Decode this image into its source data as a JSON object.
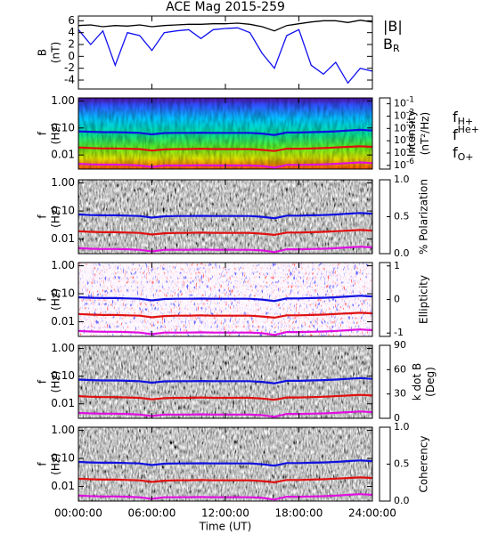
{
  "chart_data": [
    {
      "type": "line",
      "title": "ACE Mag 2015-259",
      "ylabel": [
        "B",
        "(nT)"
      ],
      "x": [
        0,
        1,
        2,
        3,
        4,
        5,
        6,
        7,
        8,
        9,
        10,
        11,
        12,
        13,
        14,
        15,
        16,
        17,
        18,
        19,
        20,
        21,
        22,
        23,
        24
      ],
      "ylim": [
        -5.5,
        6.8
      ],
      "yticks": [
        -4,
        -2,
        0,
        2,
        4,
        6
      ],
      "series": [
        {
          "name": "|B|",
          "color": "#000000",
          "values": [
            5.2,
            5.3,
            5.0,
            5.2,
            5.1,
            5.3,
            5.0,
            5.2,
            5.3,
            5.4,
            5.4,
            5.5,
            5.5,
            5.6,
            5.4,
            5.0,
            4.3,
            5.2,
            5.5,
            5.8,
            6.0,
            6.0,
            5.7,
            6.1,
            5.8
          ]
        },
        {
          "name": "B",
          "sub": "R",
          "color": "#1010f0",
          "values": [
            4.5,
            2.0,
            4.3,
            -1.5,
            4.0,
            3.5,
            1.0,
            4.0,
            4.3,
            4.5,
            3.0,
            4.5,
            4.7,
            4.8,
            4.0,
            0.5,
            -2.0,
            3.5,
            4.5,
            -1.5,
            -3.0,
            -1.0,
            -4.5,
            -2.0,
            -2.5
          ]
        }
      ]
    },
    {
      "type": "spectrogram",
      "ylabel": [
        "f",
        "(Hz)"
      ],
      "log_y": true,
      "texture": "intensity",
      "x": [
        0,
        1,
        2,
        3,
        4,
        5,
        6,
        7,
        8,
        9,
        10,
        11,
        12,
        13,
        14,
        15,
        16,
        17,
        18,
        19,
        20,
        21,
        22,
        23,
        24
      ],
      "ylim": [
        0.003,
        1.3
      ],
      "yticks": [
        0.01,
        {
          "value": 0.1,
          "label": "0.10"
        },
        {
          "value": 1,
          "label": "1.00"
        }
      ],
      "legend": true,
      "series": [
        {
          "name": "f",
          "sub": "H+",
          "color": "#1010e0",
          "values": [
            0.075,
            0.072,
            0.07,
            0.07,
            0.068,
            0.066,
            0.058,
            0.065,
            0.066,
            0.066,
            0.067,
            0.066,
            0.066,
            0.066,
            0.066,
            0.062,
            0.055,
            0.068,
            0.068,
            0.07,
            0.072,
            0.075,
            0.08,
            0.085,
            0.08
          ]
        },
        {
          "name": "f",
          "sup": "He+",
          "color": "#e01010",
          "values": [
            0.019,
            0.018,
            0.0175,
            0.0175,
            0.017,
            0.0165,
            0.0145,
            0.016,
            0.0165,
            0.0165,
            0.017,
            0.0165,
            0.0165,
            0.0165,
            0.0165,
            0.0155,
            0.014,
            0.017,
            0.017,
            0.0175,
            0.018,
            0.019,
            0.02,
            0.021,
            0.02
          ]
        },
        {
          "name": "f",
          "sub": "O+",
          "color": "#e010e0",
          "values": [
            0.0047,
            0.0045,
            0.0044,
            0.0044,
            0.0043,
            0.0041,
            0.0036,
            0.0041,
            0.0041,
            0.0041,
            0.0042,
            0.0041,
            0.0041,
            0.0041,
            0.0041,
            0.0039,
            0.0034,
            0.0043,
            0.0043,
            0.0044,
            0.0045,
            0.0047,
            0.005,
            0.0053,
            0.005
          ]
        }
      ],
      "colorbar": {
        "label": [
          "Intensity",
          "(nT²/Hz)"
        ],
        "log": true,
        "lim": [
          5e-07,
          0.3
        ],
        "colors": [
          "#300040",
          "#5010a0",
          "#2040ff",
          "#00c0ff",
          "#00e080",
          "#80f000",
          "#f0f000",
          "#ff8000",
          "#e00000"
        ],
        "ticks": [
          {
            "value": 1e-06,
            "label": "10",
            "exponent": "-6"
          },
          {
            "value": 1e-05,
            "label": "10",
            "exponent": "-5"
          },
          {
            "value": 0.0001,
            "label": "10",
            "exponent": "-4"
          },
          {
            "value": 0.001,
            "label": "10",
            "exponent": "-3"
          },
          {
            "value": 0.01,
            "label": "10",
            "exponent": "-2"
          },
          {
            "value": 0.1,
            "label": "10",
            "exponent": "-1"
          }
        ]
      }
    },
    {
      "type": "spectrogram",
      "ylabel": [
        "f",
        "(Hz)"
      ],
      "log_y": true,
      "texture": "gray",
      "x": [
        0,
        1,
        2,
        3,
        4,
        5,
        6,
        7,
        8,
        9,
        10,
        11,
        12,
        13,
        14,
        15,
        16,
        17,
        18,
        19,
        20,
        21,
        22,
        23,
        24
      ],
      "ylim": [
        0.003,
        1.3
      ],
      "yticks": [
        0.01,
        {
          "value": 0.1,
          "label": "0.10"
        },
        {
          "value": 1,
          "label": "1.00"
        }
      ],
      "series": [
        {
          "color": "#1010e0",
          "values": [
            0.075,
            0.072,
            0.07,
            0.07,
            0.068,
            0.066,
            0.058,
            0.065,
            0.066,
            0.066,
            0.067,
            0.066,
            0.066,
            0.066,
            0.066,
            0.062,
            0.055,
            0.068,
            0.068,
            0.07,
            0.072,
            0.075,
            0.08,
            0.085,
            0.08
          ]
        },
        {
          "color": "#e01010",
          "values": [
            0.019,
            0.018,
            0.0175,
            0.0175,
            0.017,
            0.0165,
            0.0145,
            0.016,
            0.0165,
            0.0165,
            0.017,
            0.0165,
            0.0165,
            0.0165,
            0.0165,
            0.0155,
            0.014,
            0.017,
            0.017,
            0.0175,
            0.018,
            0.019,
            0.02,
            0.021,
            0.02
          ]
        },
        {
          "color": "#e010e0",
          "values": [
            0.0047,
            0.0045,
            0.0044,
            0.0044,
            0.0043,
            0.0041,
            0.0036,
            0.0041,
            0.0041,
            0.0041,
            0.0042,
            0.0041,
            0.0041,
            0.0041,
            0.0041,
            0.0039,
            0.0034,
            0.0043,
            0.0043,
            0.0044,
            0.0045,
            0.0047,
            0.005,
            0.0053,
            0.005
          ]
        }
      ],
      "colorbar": {
        "label": [
          "% Polarization"
        ],
        "lim": [
          0,
          1
        ],
        "colors": [
          "#ffffff",
          "#000000"
        ],
        "ticks": [
          {
            "value": 0,
            "label": "0.0"
          },
          0.5,
          {
            "value": 1,
            "label": "1.0"
          }
        ]
      }
    },
    {
      "type": "spectrogram",
      "ylabel": [
        "f",
        "(Hz)"
      ],
      "log_y": true,
      "texture": "ellipticity",
      "x": [
        0,
        1,
        2,
        3,
        4,
        5,
        6,
        7,
        8,
        9,
        10,
        11,
        12,
        13,
        14,
        15,
        16,
        17,
        18,
        19,
        20,
        21,
        22,
        23,
        24
      ],
      "ylim": [
        0.003,
        1.3
      ],
      "yticks": [
        0.01,
        {
          "value": 0.1,
          "label": "0.10"
        },
        {
          "value": 1,
          "label": "1.00"
        }
      ],
      "series": [
        {
          "color": "#1010e0",
          "values": [
            0.075,
            0.072,
            0.07,
            0.07,
            0.068,
            0.066,
            0.058,
            0.065,
            0.066,
            0.066,
            0.067,
            0.066,
            0.066,
            0.066,
            0.066,
            0.062,
            0.055,
            0.068,
            0.068,
            0.07,
            0.072,
            0.075,
            0.08,
            0.085,
            0.08
          ]
        },
        {
          "color": "#e01010",
          "values": [
            0.019,
            0.018,
            0.0175,
            0.0175,
            0.017,
            0.0165,
            0.0145,
            0.016,
            0.0165,
            0.0165,
            0.017,
            0.0165,
            0.0165,
            0.0165,
            0.0165,
            0.0155,
            0.014,
            0.017,
            0.017,
            0.0175,
            0.018,
            0.019,
            0.02,
            0.021,
            0.02
          ]
        },
        {
          "color": "#e010e0",
          "values": [
            0.0047,
            0.0045,
            0.0044,
            0.0044,
            0.0043,
            0.0041,
            0.0036,
            0.0041,
            0.0041,
            0.0041,
            0.0042,
            0.0041,
            0.0041,
            0.0041,
            0.0041,
            0.0039,
            0.0034,
            0.0043,
            0.0043,
            0.0044,
            0.0045,
            0.0047,
            0.005,
            0.0053,
            0.005
          ]
        }
      ],
      "colorbar": {
        "label": [
          "Ellipticity"
        ],
        "lim": [
          -1.1,
          1.1
        ],
        "colors": [
          "#2020ff",
          "#ffffff",
          "#ff2020"
        ],
        "ticks": [
          -1,
          0,
          1
        ]
      }
    },
    {
      "type": "spectrogram",
      "ylabel": [
        "f",
        "(Hz)"
      ],
      "log_y": true,
      "texture": "gray",
      "x": [
        0,
        1,
        2,
        3,
        4,
        5,
        6,
        7,
        8,
        9,
        10,
        11,
        12,
        13,
        14,
        15,
        16,
        17,
        18,
        19,
        20,
        21,
        22,
        23,
        24
      ],
      "ylim": [
        0.003,
        1.3
      ],
      "yticks": [
        0.01,
        {
          "value": 0.1,
          "label": "0.10"
        },
        {
          "value": 1,
          "label": "1.00"
        }
      ],
      "series": [
        {
          "color": "#1010e0",
          "values": [
            0.075,
            0.072,
            0.07,
            0.07,
            0.068,
            0.066,
            0.058,
            0.065,
            0.066,
            0.066,
            0.067,
            0.066,
            0.066,
            0.066,
            0.066,
            0.062,
            0.055,
            0.068,
            0.068,
            0.07,
            0.072,
            0.075,
            0.08,
            0.085,
            0.08
          ]
        },
        {
          "color": "#e01010",
          "values": [
            0.019,
            0.018,
            0.0175,
            0.0175,
            0.017,
            0.0165,
            0.0145,
            0.016,
            0.0165,
            0.0165,
            0.017,
            0.0165,
            0.0165,
            0.0165,
            0.0165,
            0.0155,
            0.014,
            0.017,
            0.017,
            0.0175,
            0.018,
            0.019,
            0.02,
            0.021,
            0.02
          ]
        },
        {
          "color": "#e010e0",
          "values": [
            0.0047,
            0.0045,
            0.0044,
            0.0044,
            0.0043,
            0.0041,
            0.0036,
            0.0041,
            0.0041,
            0.0041,
            0.0042,
            0.0041,
            0.0041,
            0.0041,
            0.0041,
            0.0039,
            0.0034,
            0.0043,
            0.0043,
            0.0044,
            0.0045,
            0.0047,
            0.005,
            0.0053,
            0.005
          ]
        }
      ],
      "colorbar": {
        "label": [
          "k dot B",
          "(Deg)"
        ],
        "lim": [
          0,
          90
        ],
        "colors": [
          "#ffffff",
          "#000000"
        ],
        "ticks": [
          0,
          30,
          60,
          90
        ]
      }
    },
    {
      "type": "spectrogram",
      "ylabel": [
        "f",
        "(Hz)"
      ],
      "log_y": true,
      "texture": "gray",
      "x": [
        0,
        1,
        2,
        3,
        4,
        5,
        6,
        7,
        8,
        9,
        10,
        11,
        12,
        13,
        14,
        15,
        16,
        17,
        18,
        19,
        20,
        21,
        22,
        23,
        24
      ],
      "ylim": [
        0.003,
        1.3
      ],
      "yticks": [
        0.01,
        {
          "value": 0.1,
          "label": "0.10"
        },
        {
          "value": 1,
          "label": "1.00"
        }
      ],
      "series": [
        {
          "color": "#1010e0",
          "values": [
            0.075,
            0.072,
            0.07,
            0.07,
            0.068,
            0.066,
            0.058,
            0.065,
            0.066,
            0.066,
            0.067,
            0.066,
            0.066,
            0.066,
            0.066,
            0.062,
            0.055,
            0.068,
            0.068,
            0.07,
            0.072,
            0.075,
            0.08,
            0.085,
            0.08
          ]
        },
        {
          "color": "#e01010",
          "values": [
            0.019,
            0.018,
            0.0175,
            0.0175,
            0.017,
            0.0165,
            0.0145,
            0.016,
            0.0165,
            0.0165,
            0.017,
            0.0165,
            0.0165,
            0.0165,
            0.0165,
            0.0155,
            0.014,
            0.017,
            0.017,
            0.0175,
            0.018,
            0.019,
            0.02,
            0.021,
            0.02
          ]
        },
        {
          "color": "#e010e0",
          "values": [
            0.0047,
            0.0045,
            0.0044,
            0.0044,
            0.0043,
            0.0041,
            0.0036,
            0.0041,
            0.0041,
            0.0041,
            0.0042,
            0.0041,
            0.0041,
            0.0041,
            0.0041,
            0.0039,
            0.0034,
            0.0043,
            0.0043,
            0.0044,
            0.0045,
            0.0047,
            0.005,
            0.0053,
            0.005
          ]
        }
      ],
      "colorbar": {
        "label": [
          "Coherency"
        ],
        "lim": [
          0,
          1
        ],
        "colors": [
          "#ffffff",
          "#000000"
        ],
        "ticks": [
          {
            "value": 0,
            "label": "0.0"
          },
          0.5,
          {
            "value": 1,
            "label": "1.0"
          }
        ]
      },
      "xlim": [
        0,
        24
      ],
      "xlabel": "Time (UT)",
      "xticks": [
        {
          "value": 0,
          "label": "00:00:00"
        },
        {
          "value": 6,
          "label": "06:00:00"
        },
        {
          "value": 12,
          "label": "12:00:00"
        },
        {
          "value": 18,
          "label": "18:00:00"
        },
        {
          "value": 24,
          "label": "24:00:00"
        }
      ]
    }
  ]
}
